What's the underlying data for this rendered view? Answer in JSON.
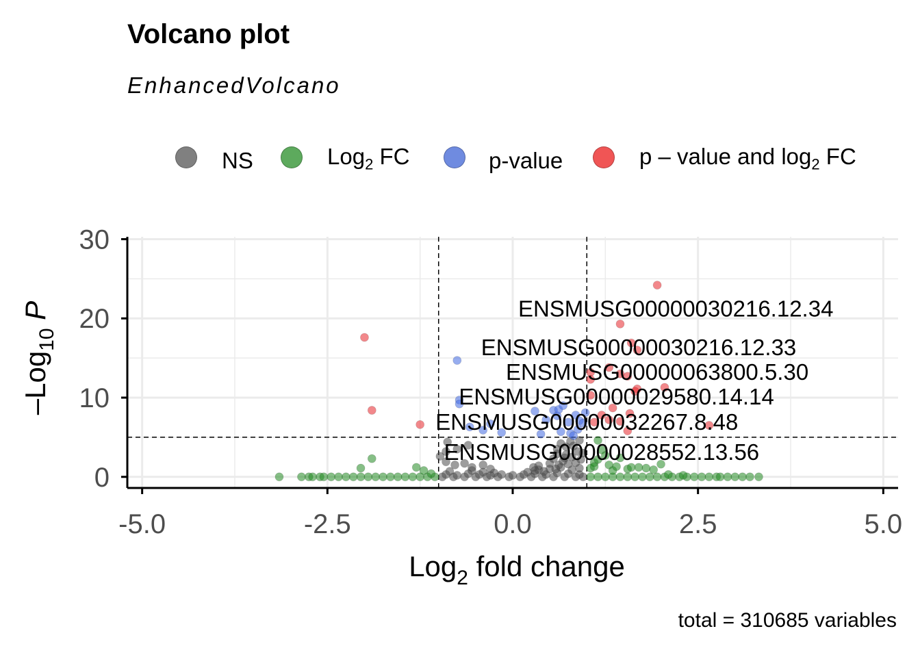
{
  "title": "Volcano plot",
  "subtitle": "EnhancedVolcano",
  "caption": "total = 310685 variables",
  "legend": [
    {
      "name": "NS",
      "label_main": "NS",
      "label_sub": "",
      "label_tail": "",
      "color": "#808080"
    },
    {
      "name": "Log2 FC",
      "label_main": "Log",
      "label_sub": "2",
      "label_tail": " FC",
      "color": "#5daa5d"
    },
    {
      "name": "p-value",
      "label_main": "p-value",
      "label_sub": "",
      "label_tail": "",
      "color": "#6f8be0"
    },
    {
      "name": "p - value and log2 FC",
      "label_main": "p – value and log",
      "label_sub": "2",
      "label_tail": " FC",
      "color": "#f05555"
    }
  ],
  "colors": {
    "ns": "#4d4d4d",
    "log2fc": "#228b22",
    "pvalue": "#4169e1",
    "both": "#e8262b",
    "grid": "#ebebeb",
    "axis": "#000000",
    "tick_text": "#4d4d4d"
  },
  "chart_data": {
    "type": "scatter",
    "xlabel": {
      "main": "Log",
      "sub": "2",
      "tail": " fold change"
    },
    "ylabel": {
      "prefix": "–Log",
      "sub": "10",
      "tail": " P"
    },
    "xlim": [
      -5.2,
      5.2
    ],
    "ylim": [
      -1.4,
      30.3
    ],
    "xticks": [
      -5.0,
      -2.5,
      0.0,
      2.5,
      5.0
    ],
    "xtick_labels": [
      "-5.0",
      "-2.5",
      "0.0",
      "2.5",
      "5.0"
    ],
    "yticks": [
      0,
      10,
      20,
      30
    ],
    "ytick_labels": [
      "0",
      "10",
      "20",
      "30"
    ],
    "grid": true,
    "fc_cutoff": 1.0,
    "p_cutoff_log10": 5.0,
    "series": [
      {
        "name": "NS",
        "color_key": "ns",
        "points": [
          [
            -0.95,
            0.0
          ],
          [
            -0.8,
            0.0
          ],
          [
            -0.65,
            0.0
          ],
          [
            -0.5,
            0.0
          ],
          [
            -0.35,
            0.0
          ],
          [
            -0.2,
            0.0
          ],
          [
            -0.05,
            0.0
          ],
          [
            0.1,
            0.0
          ],
          [
            0.25,
            0.0
          ],
          [
            0.4,
            0.0
          ],
          [
            0.55,
            0.0
          ],
          [
            0.7,
            0.0
          ],
          [
            0.85,
            0.0
          ],
          [
            0.95,
            0.0
          ],
          [
            -0.9,
            0.3
          ],
          [
            -0.75,
            0.2
          ],
          [
            -0.6,
            0.4
          ],
          [
            -0.45,
            0.3
          ],
          [
            -0.3,
            0.2
          ],
          [
            -0.15,
            0.3
          ],
          [
            0.0,
            0.2
          ],
          [
            0.15,
            0.3
          ],
          [
            0.3,
            0.4
          ],
          [
            0.45,
            0.3
          ],
          [
            0.6,
            0.5
          ],
          [
            0.75,
            0.4
          ],
          [
            0.9,
            0.3
          ],
          [
            -0.85,
            0.7
          ],
          [
            -0.55,
            0.8
          ],
          [
            -0.4,
            0.6
          ],
          [
            -0.25,
            0.5
          ],
          [
            0.2,
            0.6
          ],
          [
            0.35,
            0.9
          ],
          [
            0.5,
            1.0
          ],
          [
            0.65,
            1.2
          ],
          [
            0.8,
            0.9
          ],
          [
            0.9,
            1.1
          ],
          [
            -0.98,
            2.6
          ],
          [
            -0.9,
            1.9
          ],
          [
            -0.78,
            1.5
          ],
          [
            -0.65,
            1.7
          ],
          [
            -0.55,
            1.2
          ],
          [
            -0.4,
            1.5
          ],
          [
            -0.3,
            1.0
          ],
          [
            0.28,
            1.2
          ],
          [
            0.35,
            1.4
          ],
          [
            0.5,
            1.7
          ],
          [
            0.55,
            2.3
          ],
          [
            0.62,
            1.5
          ],
          [
            0.68,
            2.0
          ],
          [
            0.72,
            2.8
          ],
          [
            0.75,
            1.6
          ],
          [
            0.8,
            2.5
          ],
          [
            0.85,
            1.8
          ],
          [
            0.88,
            3.2
          ],
          [
            0.92,
            2.2
          ],
          [
            0.95,
            3.0
          ],
          [
            -0.9,
            3.2
          ],
          [
            -0.75,
            3.5
          ],
          [
            -0.6,
            4.0
          ],
          [
            -0.88,
            4.4
          ],
          [
            0.6,
            3.5
          ],
          [
            0.65,
            4.2
          ],
          [
            0.72,
            3.8
          ],
          [
            0.78,
            4.5
          ],
          [
            0.82,
            3.9
          ],
          [
            0.9,
            4.6
          ],
          [
            0.7,
            2.4
          ],
          [
            0.6,
            2.9
          ],
          [
            0.58,
            1.0
          ],
          [
            0.42,
            0.7
          ],
          [
            0.3,
            0.8
          ]
        ]
      },
      {
        "name": "Log2 FC",
        "color_key": "log2fc",
        "points": [
          [
            -3.15,
            0.0
          ],
          [
            -2.85,
            0.0
          ],
          [
            -2.75,
            0.0
          ],
          [
            -2.7,
            0.0
          ],
          [
            -2.6,
            0.0
          ],
          [
            -2.55,
            0.0
          ],
          [
            -2.45,
            0.0
          ],
          [
            -2.35,
            0.0
          ],
          [
            -2.25,
            0.0
          ],
          [
            -2.15,
            0.0
          ],
          [
            -2.05,
            0.0
          ],
          [
            -1.95,
            0.0
          ],
          [
            -1.85,
            0.0
          ],
          [
            -1.75,
            0.0
          ],
          [
            -1.65,
            0.0
          ],
          [
            -1.55,
            0.0
          ],
          [
            -1.45,
            0.0
          ],
          [
            -1.35,
            0.0
          ],
          [
            -1.25,
            0.0
          ],
          [
            -1.15,
            0.0
          ],
          [
            -1.05,
            0.0
          ],
          [
            -2.05,
            1.1
          ],
          [
            -1.9,
            2.3
          ],
          [
            -1.3,
            1.2
          ],
          [
            -1.2,
            0.8
          ],
          [
            -1.1,
            0.4
          ],
          [
            1.05,
            0.0
          ],
          [
            1.15,
            0.0
          ],
          [
            1.25,
            0.0
          ],
          [
            1.35,
            0.0
          ],
          [
            1.45,
            0.0
          ],
          [
            1.55,
            0.0
          ],
          [
            1.65,
            0.0
          ],
          [
            1.75,
            0.0
          ],
          [
            1.85,
            0.0
          ],
          [
            1.95,
            0.0
          ],
          [
            2.05,
            0.0
          ],
          [
            2.15,
            0.0
          ],
          [
            2.25,
            0.0
          ],
          [
            2.35,
            0.0
          ],
          [
            2.45,
            0.0
          ],
          [
            2.55,
            0.0
          ],
          [
            2.65,
            0.0
          ],
          [
            2.75,
            0.0
          ],
          [
            2.8,
            0.0
          ],
          [
            2.9,
            0.0
          ],
          [
            3.0,
            0.0
          ],
          [
            3.1,
            0.0
          ],
          [
            3.2,
            0.0
          ],
          [
            3.32,
            0.0
          ],
          [
            1.05,
            1.1
          ],
          [
            1.1,
            1.8
          ],
          [
            1.15,
            4.6
          ],
          [
            1.2,
            3.4
          ],
          [
            1.25,
            2.7
          ],
          [
            1.3,
            1.5
          ],
          [
            1.35,
            0.8
          ],
          [
            1.4,
            1.3
          ],
          [
            1.45,
            2.4
          ],
          [
            1.55,
            1.0
          ],
          [
            1.6,
            1.2
          ],
          [
            1.7,
            1.2
          ],
          [
            1.8,
            1.1
          ],
          [
            1.9,
            0.9
          ],
          [
            2.0,
            1.6
          ],
          [
            2.1,
            0.3
          ],
          [
            2.3,
            0.2
          ],
          [
            1.1,
            1.3
          ],
          [
            1.15,
            2.2
          ]
        ]
      },
      {
        "name": "p-value",
        "color_key": "pvalue",
        "points": [
          [
            -0.75,
            14.7
          ],
          [
            -0.72,
            9.7
          ],
          [
            -0.72,
            9.2
          ],
          [
            -0.58,
            6.3
          ],
          [
            -0.4,
            5.9
          ],
          [
            -0.3,
            6.7
          ],
          [
            -0.15,
            5.6
          ],
          [
            0.3,
            8.3
          ],
          [
            0.38,
            5.4
          ],
          [
            0.45,
            7.2
          ],
          [
            0.55,
            8.4
          ],
          [
            0.6,
            7.7
          ],
          [
            0.62,
            8.5
          ],
          [
            0.65,
            5.7
          ],
          [
            0.68,
            9.0
          ],
          [
            0.75,
            6.9
          ],
          [
            0.78,
            5.5
          ],
          [
            0.82,
            5.2
          ],
          [
            0.85,
            7.8
          ],
          [
            0.88,
            6.0
          ],
          [
            0.9,
            7.1
          ],
          [
            0.95,
            6.8
          ],
          [
            0.98,
            8.1
          ]
        ]
      },
      {
        "name": "p - value and log2 FC",
        "color_key": "both",
        "points": [
          [
            1.95,
            24.2
          ],
          [
            1.45,
            19.3
          ],
          [
            1.6,
            16.9
          ],
          [
            1.68,
            16.0
          ],
          [
            1.3,
            13.8
          ],
          [
            1.05,
            13.2
          ],
          [
            1.45,
            13.0
          ],
          [
            1.55,
            12.7
          ],
          [
            1.05,
            12.3
          ],
          [
            1.68,
            11.1
          ],
          [
            2.05,
            11.3
          ],
          [
            1.65,
            10.8
          ],
          [
            1.05,
            10.3
          ],
          [
            1.58,
            8.0
          ],
          [
            1.3,
            7.2
          ],
          [
            1.45,
            7.0
          ],
          [
            1.1,
            6.9
          ],
          [
            1.55,
            5.8
          ],
          [
            2.65,
            6.5
          ],
          [
            1.2,
            7.8
          ],
          [
            1.35,
            8.7
          ],
          [
            -2.0,
            17.6
          ],
          [
            -1.9,
            8.4
          ],
          [
            -1.25,
            6.6
          ]
        ]
      }
    ],
    "annotations": [
      {
        "text": "ENSMUSG00000030216.12.34",
        "x": 2.2,
        "y": 21.2
      },
      {
        "text": "ENSMUSG00000030216.12.33",
        "x": 1.7,
        "y": 16.3
      },
      {
        "text": "ENSMUSG00000063800.5.30",
        "x": 1.95,
        "y": 13.2
      },
      {
        "text": "ENSMUSG00000029580.14.14",
        "x": 1.4,
        "y": 10.1
      },
      {
        "text": "ENSMUSG00000032267.8.48",
        "x": 1.0,
        "y": 6.9
      },
      {
        "text": "ENSMUSG00000028552.13.56",
        "x": 1.2,
        "y": 3.1
      }
    ]
  }
}
